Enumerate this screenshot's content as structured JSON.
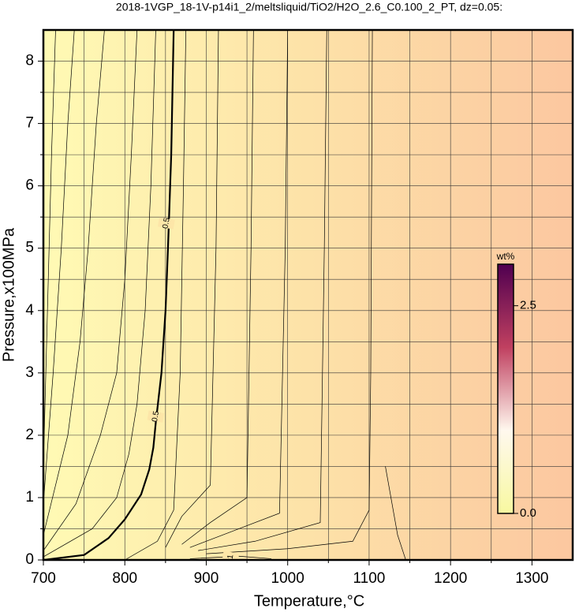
{
  "chart_data": {
    "type": "contour",
    "title": "2018-1VGP_18-1V-p14i1_2/meltsliquid/TiO2/H2O_2.6_C0.100_2_PT, dz=0.05:",
    "x_label": "Temperature,°C",
    "y_label": "Pressure,x100MPa",
    "xlim": [
      700,
      1350
    ],
    "ylim": [
      0,
      8.5
    ],
    "xticks": [
      700,
      800,
      900,
      1000,
      1100,
      1200,
      1300
    ],
    "yticks": [
      0,
      1,
      2,
      3,
      4,
      5,
      6,
      7,
      8
    ],
    "xminorticks": [
      750,
      850,
      950,
      1050,
      1150,
      1250
    ],
    "yminorticks": [
      0.5,
      1.5,
      2.5,
      3.5,
      4.5,
      5.5,
      6.5,
      7.5
    ],
    "grid": true,
    "background_colors": [
      "#fffab4",
      "#fde2a8",
      "#fcc7a0"
    ],
    "contours": [
      {
        "level": 0.1,
        "x": [
          700,
          705,
          710,
          715
        ],
        "y": [
          1.5,
          4,
          6.5,
          8.5
        ]
      },
      {
        "level": 0.2,
        "x": [
          700,
          712,
          722,
          730,
          738
        ],
        "y": [
          0.9,
          3,
          5,
          7,
          8.5
        ]
      },
      {
        "level": 0.3,
        "x": [
          700,
          730,
          745,
          755,
          765,
          775
        ],
        "y": [
          0.4,
          2,
          3.5,
          5,
          7,
          8.5
        ]
      },
      {
        "level": 0.4,
        "x": [
          700,
          740,
          770,
          790,
          800,
          808,
          815
        ],
        "y": [
          0.15,
          0.9,
          2,
          3,
          4.5,
          6.5,
          8.5
        ]
      },
      {
        "level": 0.45,
        "x": [
          700,
          760,
          790,
          805,
          815,
          825,
          832,
          838
        ],
        "y": [
          0.05,
          0.5,
          1,
          1.7,
          2.5,
          4,
          6,
          8.5
        ]
      },
      {
        "level": 0.5,
        "bold": true,
        "x": [
          700,
          750,
          780,
          800,
          820,
          830,
          835,
          838,
          845,
          850,
          853,
          857,
          860
        ],
        "y": [
          0,
          0.08,
          0.35,
          0.65,
          1.05,
          1.45,
          1.8,
          2.2,
          3,
          4,
          5,
          6.5,
          8.5
        ],
        "label_at": [
          [
            851,
            5.4
          ],
          [
            838,
            2.3
          ]
        ]
      },
      {
        "level": 0.55,
        "x": [
          800,
          840,
          860,
          868,
          872,
          875
        ],
        "y": [
          0,
          0.3,
          0.8,
          3,
          6,
          8.5
        ]
      },
      {
        "level": 0.6,
        "x": [
          850,
          870,
          905,
          912,
          915
        ],
        "y": [
          0.2,
          0.7,
          1.2,
          5,
          8.5
        ]
      },
      {
        "level": 0.65,
        "x": [
          870,
          905,
          950,
          955,
          958
        ],
        "y": [
          0.25,
          0.6,
          1.0,
          5,
          8.5
        ]
      },
      {
        "level": 0.7,
        "x": [
          880,
          930,
          990,
          997,
          1000
        ],
        "y": [
          0.2,
          0.45,
          0.75,
          5,
          8.5
        ]
      },
      {
        "level": 0.75,
        "x": [
          890,
          960,
          1040,
          1045,
          1048
        ],
        "y": [
          0.15,
          0.3,
          0.6,
          5,
          8.5
        ]
      },
      {
        "level": 0.8,
        "x": [
          900,
          1000,
          1080,
          1100,
          1102,
          1104
        ],
        "y": [
          0.1,
          0.18,
          0.3,
          0.8,
          3,
          8.5
        ]
      },
      {
        "level": 0.85,
        "x": [
          1120,
          1135,
          1145
        ],
        "y": [
          1.5,
          0.4,
          0
        ]
      },
      {
        "level": 1,
        "x": [
          880,
          940,
          980
        ],
        "y": [
          0.02,
          0.06,
          0.02
        ],
        "label_at": [
          [
            930,
            0.05
          ]
        ]
      }
    ],
    "colorbar": {
      "label": "wt%",
      "lim": [
        0,
        3.0
      ],
      "ticks": [
        {
          "value": 0,
          "label": "0.0"
        },
        {
          "value": 2.5,
          "label": "2.5"
        }
      ],
      "colors": [
        "#f8f8a0",
        "#fff8ee",
        "#c04060",
        "#500050"
      ]
    }
  }
}
